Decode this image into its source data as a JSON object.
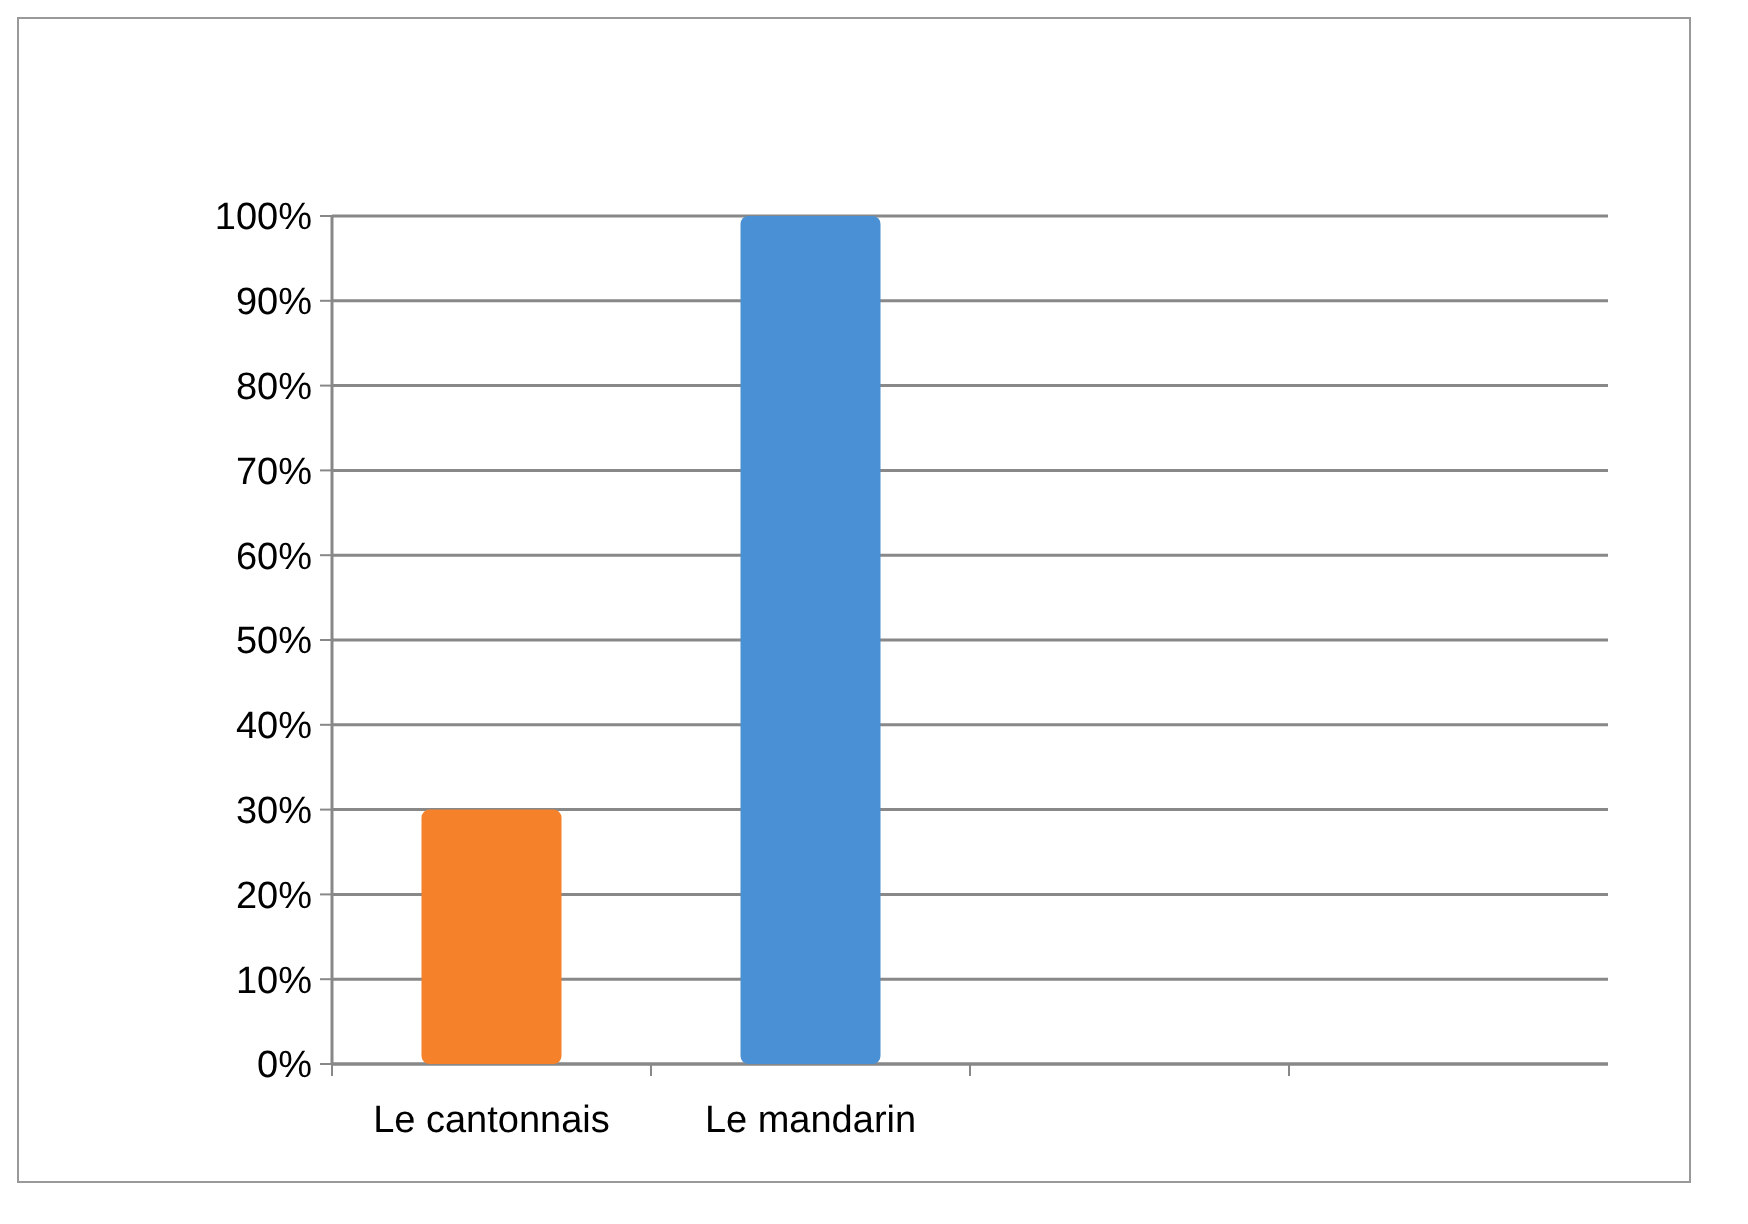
{
  "chart_data": {
    "type": "bar",
    "categories": [
      "Le cantonnais",
      "Le mandarin",
      null,
      null
    ],
    "values": [
      30,
      100,
      null,
      null
    ],
    "colors": [
      "#f5822a",
      "#4a90d4",
      null,
      null
    ],
    "ylim": [
      0,
      100
    ],
    "yticks": [
      {
        "value": 0,
        "label": "0%"
      },
      {
        "value": 10,
        "label": "10%"
      },
      {
        "value": 20,
        "label": "20%"
      },
      {
        "value": 30,
        "label": "30%"
      },
      {
        "value": 40,
        "label": "40%"
      },
      {
        "value": 50,
        "label": "50%"
      },
      {
        "value": 60,
        "label": "60%"
      },
      {
        "value": 70,
        "label": "70%"
      },
      {
        "value": 80,
        "label": "80%"
      },
      {
        "value": 90,
        "label": "90%"
      },
      {
        "value": 100,
        "label": "100%"
      }
    ],
    "grid": "y"
  }
}
